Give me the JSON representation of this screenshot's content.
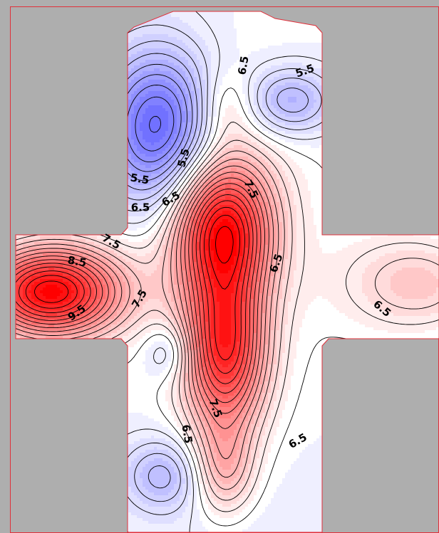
{
  "chart_data": {
    "type": "heatmap",
    "title": "",
    "xlabel": "",
    "ylabel": "",
    "grid": false,
    "legend": "none",
    "colorscale": {
      "low": "#0000ff",
      "mid": "#ffffff",
      "high": "#ff0000",
      "mid_value": 6.5,
      "low_value": 4.0,
      "high_value": 10.0
    },
    "contour_levels": [
      4.0,
      4.25,
      4.5,
      4.75,
      5.0,
      5.25,
      5.5,
      5.75,
      6.0,
      6.25,
      6.5,
      6.75,
      7.0,
      7.25,
      7.5,
      7.75,
      8.0,
      8.25,
      8.5,
      8.75,
      9.0,
      9.25,
      9.5,
      9.75,
      10.0
    ],
    "contour_labels": [
      {
        "text": "6.5",
        "value": 6.5,
        "region": "top-center"
      },
      {
        "text": "5.5",
        "value": 5.5,
        "region": "top-right"
      },
      {
        "text": "5.5",
        "value": 5.5,
        "region": "upper-left-inner"
      },
      {
        "text": "5.5",
        "value": 5.5,
        "region": "upper-left"
      },
      {
        "text": "6.5",
        "value": 6.5,
        "region": "upper-left-lower"
      },
      {
        "text": "6.5",
        "value": 6.5,
        "region": "upper-left-center"
      },
      {
        "text": "7.5",
        "value": 7.5,
        "region": "center-upper"
      },
      {
        "text": "7.5",
        "value": 7.5,
        "region": "left-arm-top"
      },
      {
        "text": "8.5",
        "value": 8.5,
        "region": "left-arm"
      },
      {
        "text": "9.5",
        "value": 9.5,
        "region": "left-arm-lower"
      },
      {
        "text": "7.5",
        "value": 7.5,
        "region": "center-left"
      },
      {
        "text": "6.5",
        "value": 6.5,
        "region": "center-right"
      },
      {
        "text": "6.5",
        "value": 6.5,
        "region": "right-arm"
      },
      {
        "text": "7.5",
        "value": 7.5,
        "region": "center-lower"
      },
      {
        "text": "6.5",
        "value": 6.5,
        "region": "lower-left"
      },
      {
        "text": "6.5",
        "value": 6.5,
        "region": "lower-right"
      }
    ],
    "extrema": [
      {
        "kind": "min",
        "value": 4.0,
        "region": "upper-left"
      },
      {
        "kind": "min",
        "value": 5.2,
        "region": "top-right"
      },
      {
        "kind": "max",
        "value": 6.9,
        "region": "top-center"
      },
      {
        "kind": "max",
        "value": 9.6,
        "region": "center"
      },
      {
        "kind": "max",
        "value": 10.0,
        "region": "left-arm"
      },
      {
        "kind": "max",
        "value": 7.3,
        "region": "right-arm"
      },
      {
        "kind": "min",
        "value": 5.7,
        "region": "lower-left-upper"
      },
      {
        "kind": "max",
        "value": 9.3,
        "region": "lower-center"
      },
      {
        "kind": "min",
        "value": 5.4,
        "region": "lower-left"
      },
      {
        "kind": "max",
        "value": 7.4,
        "region": "bottom-center"
      }
    ]
  }
}
